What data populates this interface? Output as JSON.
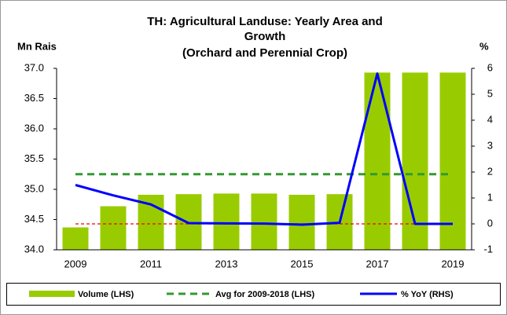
{
  "chart_data": {
    "type": "bar_line",
    "title": [
      "TH: Agricultural Landuse: Yearly Area and",
      "Growth",
      "(Orchard and Perennial Crop)"
    ],
    "ylabel": "Mn Rais",
    "y2label": "%",
    "categories": [
      "2009",
      null,
      "2011",
      null,
      "2013",
      null,
      "2015",
      null,
      "2017",
      null,
      "2019"
    ],
    "series": [
      {
        "name": "Volume (LHS)",
        "kind": "bar",
        "color": "#99cc00",
        "values": [
          34.37,
          34.72,
          34.91,
          34.92,
          34.93,
          34.93,
          34.91,
          34.92,
          36.93,
          36.93,
          36.93
        ]
      },
      {
        "name": "Avg for 2009-2018 (LHS)",
        "kind": "hline",
        "color": "#339933",
        "value": 35.25
      },
      {
        "name": "% YoY (RHS)",
        "kind": "line",
        "axis": "y2",
        "color": "#0000ff",
        "values": [
          1.5,
          1.1,
          0.75,
          0.03,
          0.02,
          0.01,
          -0.03,
          0.04,
          5.8,
          0,
          0
        ]
      }
    ],
    "reference_line": {
      "value": 0,
      "axis": "y2",
      "color": "#ff0000"
    },
    "ylim": [
      34,
      37
    ],
    "yticks": [
      {
        "value": 34,
        "label": "34.0"
      },
      {
        "value": 34.5,
        "label": "34.5"
      },
      {
        "value": 35,
        "label": "35.0"
      },
      {
        "value": 35.5,
        "label": "35.5"
      },
      {
        "value": 36,
        "label": "36.0"
      },
      {
        "value": 36.5,
        "label": "36.5"
      },
      {
        "value": 37,
        "label": "37.0"
      }
    ],
    "y2lim": [
      -1,
      6
    ],
    "y2ticks": [
      -1,
      0,
      1,
      2,
      3,
      4,
      5,
      6
    ]
  }
}
